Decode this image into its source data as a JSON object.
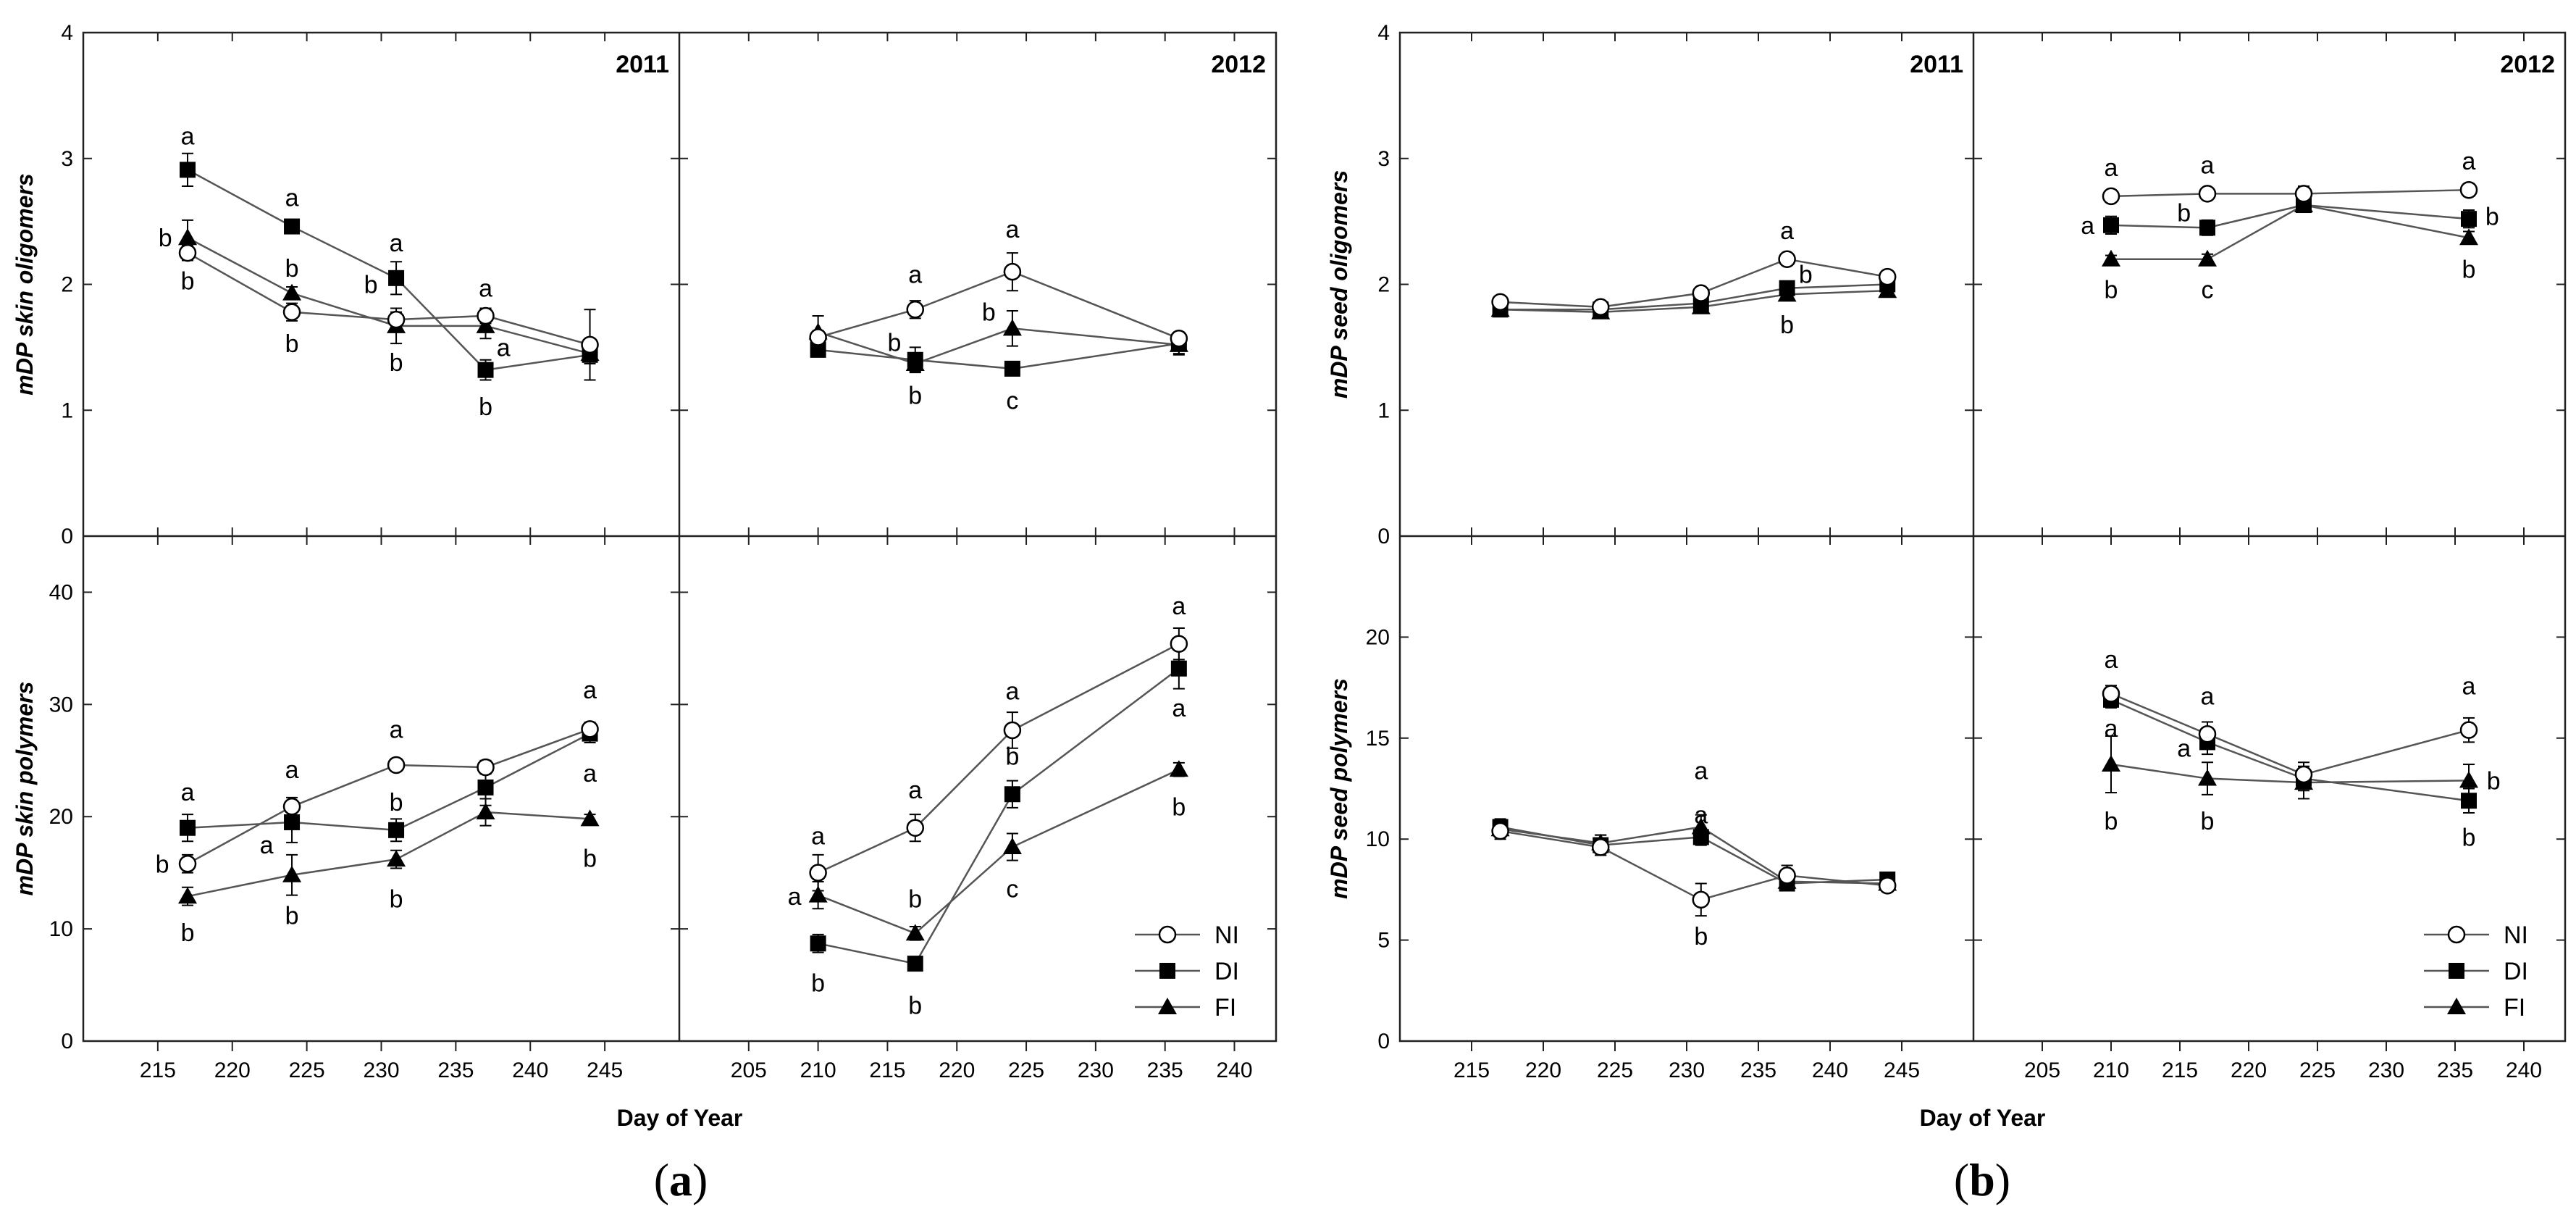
{
  "chart_data": [
    {
      "id": "a",
      "panel_label_open": "(",
      "panel_label_letter": "a",
      "panel_label_close": ")",
      "type": "line",
      "xlabel": "Day of Year",
      "years": [
        "2011",
        "2012"
      ],
      "top": {
        "ylabel": "mDP skin oligomers",
        "ylim": [
          0,
          4
        ],
        "yticks": [
          0,
          1,
          2,
          3,
          4
        ],
        "series": {
          "2011": {
            "NI": {
              "x": [
                217,
                224,
                231,
                237,
                244
              ],
              "y": [
                2.25,
                1.78,
                1.72,
                1.75,
                1.52
              ],
              "err": [
                0.06,
                0.07,
                0.06,
                0.06,
                0.28
              ]
            },
            "DI": {
              "x": [
                217,
                224,
                231,
                237,
                244
              ],
              "y": [
                2.91,
                2.46,
                2.05,
                1.32,
                1.44
              ],
              "err": [
                0.13,
                0.04,
                0.13,
                0.08,
                0.07
              ]
            },
            "FI": {
              "x": [
                217,
                224,
                231,
                237,
                244
              ],
              "y": [
                2.37,
                1.93,
                1.67,
                1.67,
                1.45
              ],
              "err": [
                0.14,
                0.05,
                0.14,
                0.1,
                0.05
              ]
            }
          },
          "2012": {
            "NI": {
              "x": [
                210,
                217,
                224,
                236
              ],
              "y": [
                1.58,
                1.8,
                2.1,
                1.57
              ],
              "err": [
                0.05,
                0.07,
                0.15,
                0.05
              ]
            },
            "DI": {
              "x": [
                210,
                217,
                224,
                236
              ],
              "y": [
                1.48,
                1.4,
                1.33,
                1.53
              ],
              "err": [
                0.04,
                0.1,
                0.04,
                0.08
              ]
            },
            "FI": {
              "x": [
                210,
                217,
                224,
                236
              ],
              "y": [
                1.62,
                1.37,
                1.65,
                1.52
              ],
              "err": [
                0.13,
                0.06,
                0.14,
                0.08
              ]
            }
          }
        },
        "annotations": {
          "2011": [
            {
              "x": 217,
              "y": 3.18,
              "text": "a"
            },
            {
              "x": 215.5,
              "y": 2.37,
              "text": "b"
            },
            {
              "x": 217,
              "y": 2.03,
              "text": "b"
            },
            {
              "x": 224,
              "y": 2.69,
              "text": "a"
            },
            {
              "x": 224,
              "y": 2.13,
              "text": "b"
            },
            {
              "x": 224,
              "y": 1.53,
              "text": "b"
            },
            {
              "x": 231,
              "y": 2.33,
              "text": "a"
            },
            {
              "x": 229.3,
              "y": 2.0,
              "text": "b"
            },
            {
              "x": 231,
              "y": 1.38,
              "text": "b"
            },
            {
              "x": 237,
              "y": 1.97,
              "text": "a"
            },
            {
              "x": 238.2,
              "y": 1.5,
              "text": "a"
            },
            {
              "x": 237,
              "y": 1.03,
              "text": "b"
            }
          ],
          "2012": [
            {
              "x": 217,
              "y": 2.08,
              "text": "a"
            },
            {
              "x": 215.5,
              "y": 1.54,
              "text": "b"
            },
            {
              "x": 217,
              "y": 1.12,
              "text": "b"
            },
            {
              "x": 224,
              "y": 2.44,
              "text": "a"
            },
            {
              "x": 222.3,
              "y": 1.78,
              "text": "b"
            },
            {
              "x": 224,
              "y": 1.08,
              "text": "c"
            }
          ]
        }
      },
      "bottom": {
        "ylabel": "mDP skin polymers",
        "ylim": [
          0,
          45
        ],
        "yticks": [
          0,
          10,
          20,
          30,
          40
        ],
        "series": {
          "2011": {
            "NI": {
              "x": [
                217,
                224,
                231,
                237,
                244
              ],
              "y": [
                15.8,
                20.9,
                24.6,
                24.4,
                27.8
              ],
              "err": [
                0.8,
                0.8,
                0.4,
                0.6,
                0.6
              ]
            },
            "DI": {
              "x": [
                217,
                224,
                231,
                237,
                244
              ],
              "y": [
                19.0,
                19.5,
                18.8,
                22.6,
                27.4
              ],
              "err": [
                1.2,
                1.8,
                1.0,
                1.6,
                0.8
              ]
            },
            "FI": {
              "x": [
                217,
                224,
                231,
                237,
                244
              ],
              "y": [
                12.9,
                14.8,
                16.2,
                20.4,
                19.8
              ],
              "err": [
                0.8,
                1.8,
                0.8,
                1.2,
                0.4
              ]
            }
          },
          "2012": {
            "NI": {
              "x": [
                210,
                217,
                224,
                236
              ],
              "y": [
                15.0,
                19.0,
                27.7,
                35.4
              ],
              "err": [
                1.6,
                1.2,
                1.6,
                1.4
              ]
            },
            "DI": {
              "x": [
                210,
                217,
                224,
                236
              ],
              "y": [
                8.7,
                6.9,
                22.0,
                33.2
              ],
              "err": [
                0.8,
                0.5,
                1.2,
                1.8
              ]
            },
            "FI": {
              "x": [
                210,
                217,
                224,
                236
              ],
              "y": [
                13.0,
                9.6,
                17.3,
                24.2
              ],
              "err": [
                1.2,
                0.6,
                1.2,
                0.6
              ]
            }
          }
        },
        "annotations": {
          "2011": [
            {
              "x": 217,
              "y": 22.2,
              "text": "a"
            },
            {
              "x": 215.3,
              "y": 15.8,
              "text": "b"
            },
            {
              "x": 217,
              "y": 9.7,
              "text": "b"
            },
            {
              "x": 224,
              "y": 24.2,
              "text": "a"
            },
            {
              "x": 222.3,
              "y": 17.5,
              "text": "a"
            },
            {
              "x": 224,
              "y": 11.2,
              "text": "b"
            },
            {
              "x": 231,
              "y": 27.8,
              "text": "a"
            },
            {
              "x": 231,
              "y": 21.3,
              "text": "b"
            },
            {
              "x": 231,
              "y": 12.7,
              "text": "b"
            },
            {
              "x": 244,
              "y": 31.3,
              "text": "a"
            },
            {
              "x": 244,
              "y": 23.9,
              "text": "a"
            },
            {
              "x": 244,
              "y": 16.3,
              "text": "b"
            }
          ],
          "2012": [
            {
              "x": 210,
              "y": 18.3,
              "text": "a"
            },
            {
              "x": 208.3,
              "y": 12.9,
              "text": "a"
            },
            {
              "x": 210,
              "y": 5.2,
              "text": "b"
            },
            {
              "x": 217,
              "y": 22.4,
              "text": "a"
            },
            {
              "x": 217,
              "y": 12.7,
              "text": "b"
            },
            {
              "x": 217,
              "y": 3.2,
              "text": "b"
            },
            {
              "x": 224,
              "y": 31.2,
              "text": "a"
            },
            {
              "x": 224,
              "y": 25.4,
              "text": "b"
            },
            {
              "x": 224,
              "y": 13.6,
              "text": "c"
            },
            {
              "x": 236,
              "y": 38.8,
              "text": "a"
            },
            {
              "x": 236,
              "y": 29.7,
              "text": "a"
            },
            {
              "x": 236,
              "y": 20.9,
              "text": "b"
            }
          ]
        }
      }
    },
    {
      "id": "b",
      "panel_label_open": "(",
      "panel_label_letter": "b",
      "panel_label_close": ")",
      "type": "line",
      "xlabel": "Day of Year",
      "years": [
        "2011",
        "2012"
      ],
      "top": {
        "ylabel": "mDP seed oligomers",
        "ylim": [
          0,
          4
        ],
        "yticks": [
          0,
          1,
          2,
          3,
          4
        ],
        "series": {
          "2011": {
            "NI": {
              "x": [
                217,
                224,
                231,
                237,
                244
              ],
              "y": [
                1.86,
                1.82,
                1.93,
                2.2,
                2.06
              ],
              "err": [
                0.03,
                0.03,
                0.04,
                0.04,
                0.03
              ]
            },
            "DI": {
              "x": [
                217,
                224,
                231,
                237,
                244
              ],
              "y": [
                1.8,
                1.8,
                1.85,
                1.97,
                2.0
              ],
              "err": [
                0.03,
                0.03,
                0.04,
                0.03,
                0.03
              ]
            },
            "FI": {
              "x": [
                217,
                224,
                231,
                237,
                244
              ],
              "y": [
                1.8,
                1.78,
                1.82,
                1.92,
                1.95
              ],
              "err": [
                0.03,
                0.04,
                0.04,
                0.03,
                0.03
              ]
            }
          },
          "2012": {
            "NI": {
              "x": [
                210,
                217,
                224,
                236
              ],
              "y": [
                2.7,
                2.72,
                2.72,
                2.75
              ],
              "err": [
                0.03,
                0.04,
                0.06,
                0.05
              ]
            },
            "DI": {
              "x": [
                210,
                217,
                224,
                236
              ],
              "y": [
                2.47,
                2.45,
                2.63,
                2.52
              ],
              "err": [
                0.07,
                0.06,
                0.03,
                0.07
              ]
            },
            "FI": {
              "x": [
                210,
                217,
                224,
                236
              ],
              "y": [
                2.2,
                2.2,
                2.63,
                2.37
              ],
              "err": [
                0.03,
                0.04,
                0.04,
                0.05
              ]
            }
          }
        },
        "annotations": {
          "2011": [
            {
              "x": 237,
              "y": 2.43,
              "text": "a"
            },
            {
              "x": 238.3,
              "y": 2.08,
              "text": "b"
            },
            {
              "x": 237,
              "y": 1.68,
              "text": "b"
            }
          ],
          "2012": [
            {
              "x": 210,
              "y": 2.93,
              "text": "a"
            },
            {
              "x": 208.3,
              "y": 2.47,
              "text": "a"
            },
            {
              "x": 210,
              "y": 1.96,
              "text": "b"
            },
            {
              "x": 217,
              "y": 2.95,
              "text": "a"
            },
            {
              "x": 215.3,
              "y": 2.57,
              "text": "b"
            },
            {
              "x": 217,
              "y": 1.96,
              "text": "c"
            },
            {
              "x": 236,
              "y": 2.98,
              "text": "a"
            },
            {
              "x": 237.7,
              "y": 2.54,
              "text": "b"
            },
            {
              "x": 236,
              "y": 2.12,
              "text": "b"
            }
          ]
        }
      },
      "bottom": {
        "ylabel": "mDP seed polymers",
        "ylim": [
          0,
          25
        ],
        "yticks": [
          0,
          5,
          10,
          15,
          20
        ],
        "series": {
          "2011": {
            "NI": {
              "x": [
                217,
                224,
                231,
                237,
                244
              ],
              "y": [
                10.4,
                9.6,
                7.0,
                8.2,
                7.7
              ],
              "err": [
                0.4,
                0.4,
                0.8,
                0.5,
                0.3
              ]
            },
            "DI": {
              "x": [
                217,
                224,
                231,
                237,
                244
              ],
              "y": [
                10.6,
                9.7,
                10.1,
                7.8,
                8.0
              ],
              "err": [
                0.4,
                0.5,
                0.4,
                0.3,
                0.3
              ]
            },
            "FI": {
              "x": [
                217,
                224,
                231,
                237,
                244
              ],
              "y": [
                10.5,
                9.8,
                10.6,
                7.9,
                7.8
              ],
              "err": [
                0.4,
                0.4,
                0.6,
                0.3,
                0.3
              ]
            }
          },
          "2012": {
            "NI": {
              "x": [
                210,
                217,
                224,
                236
              ],
              "y": [
                17.2,
                15.2,
                13.2,
                15.4
              ],
              "err": [
                0.4,
                0.6,
                0.6,
                0.6
              ]
            },
            "DI": {
              "x": [
                210,
                217,
                224,
                236
              ],
              "y": [
                16.9,
                14.8,
                13.0,
                11.9
              ],
              "err": [
                0.4,
                0.6,
                0.6,
                0.6
              ]
            },
            "FI": {
              "x": [
                210,
                217,
                224,
                236
              ],
              "y": [
                13.7,
                13.0,
                12.8,
                12.9
              ],
              "err": [
                1.4,
                0.8,
                0.8,
                0.8
              ]
            }
          }
        },
        "annotations": {
          "2011": [
            {
              "x": 231,
              "y": 13.4,
              "text": "a"
            },
            {
              "x": 231,
              "y": 11.2,
              "text": "a"
            },
            {
              "x": 231,
              "y": 5.2,
              "text": "b"
            }
          ],
          "2012": [
            {
              "x": 210,
              "y": 18.9,
              "text": "a"
            },
            {
              "x": 210,
              "y": 15.5,
              "text": "a"
            },
            {
              "x": 210,
              "y": 10.9,
              "text": "b"
            },
            {
              "x": 217,
              "y": 17.1,
              "text": "a"
            },
            {
              "x": 215.3,
              "y": 14.5,
              "text": "a"
            },
            {
              "x": 217,
              "y": 10.9,
              "text": "b"
            },
            {
              "x": 236,
              "y": 17.6,
              "text": "a"
            },
            {
              "x": 237.8,
              "y": 12.9,
              "text": "b"
            },
            {
              "x": 236,
              "y": 10.1,
              "text": "b"
            }
          ]
        }
      }
    }
  ],
  "legend": [
    {
      "key": "NI",
      "label": "NI"
    },
    {
      "key": "DI",
      "label": "DI"
    },
    {
      "key": "FI",
      "label": "FI"
    }
  ],
  "xticks": {
    "2011": [
      215,
      220,
      225,
      230,
      235,
      240,
      245
    ],
    "2012": [
      205,
      210,
      215,
      220,
      225,
      230,
      235,
      240
    ]
  },
  "colors": {
    "line": "#555555",
    "axis": "#222222",
    "marker": "#000000"
  }
}
